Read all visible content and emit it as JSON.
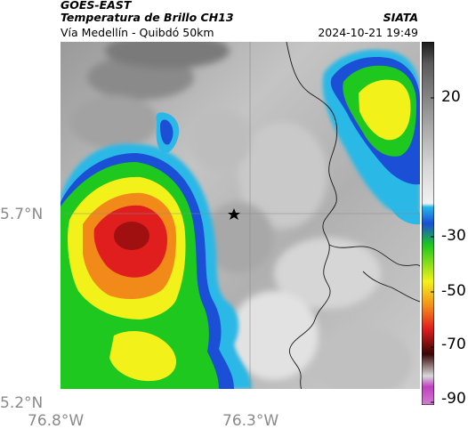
{
  "header": {
    "satellite": "GOES-EAST",
    "product": "Temperatura de Brillo CH13",
    "route": "Vía Medellín - Quibdó 50km",
    "organization": "SIATA",
    "timestamp": "2024-10-21 19:49"
  },
  "axes": {
    "lat_labels": [
      "5.7°N",
      "5.2°N"
    ],
    "lon_labels": [
      "76.8°W",
      "76.3°W"
    ]
  },
  "colorbar": {
    "tick_labels": [
      "20",
      "-30",
      "-50",
      "-70",
      "-90"
    ],
    "colors": {
      "warm_gray_light": "#d8d8d8",
      "warm_gray_dark": "#7a7a7a",
      "blue": "#1a4fd6",
      "cyan": "#24b8e8",
      "green": "#1ec81e",
      "yellow": "#f2f21a",
      "orange": "#f28a1a",
      "red": "#e01e1e",
      "dark_red": "#6a0a0a",
      "magenta": "#c040c0"
    }
  },
  "map": {
    "marker": "star-icon"
  }
}
